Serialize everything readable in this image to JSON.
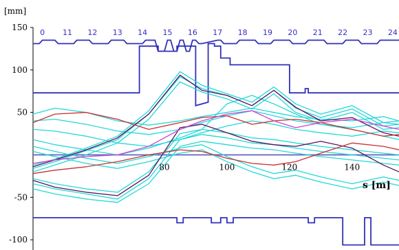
{
  "chart_data": {
    "type": "line",
    "title": "",
    "ylabel": "[mm]",
    "xlabel": "s [m]",
    "xlim": [
      38,
      155
    ],
    "ylim": [
      -112,
      150
    ],
    "x_ticks": [
      "80",
      "100",
      "120",
      "140"
    ],
    "y_ticks": [
      "150",
      "100",
      "50",
      "-50",
      "-100"
    ],
    "cell_labels": [
      "0",
      "11",
      "12",
      "13",
      "14",
      "15",
      "16",
      "17",
      "18",
      "19",
      "20",
      "21",
      "22",
      "23",
      "24"
    ],
    "colors": {
      "aperture": "#3030b8",
      "center_line": "#6060c0",
      "trajectories_cyan": "#22d8d8",
      "trajectories_dark": "#5a1060",
      "trajectories_red": "#c83030",
      "trajectories_magenta": "#d040d0"
    },
    "series": [
      {
        "role": "top-cell-bar",
        "color": "#3030b8",
        "x": [
          38,
          40,
          41,
          45,
          46,
          51,
          52,
          56,
          57,
          62,
          63,
          67,
          68,
          73,
          74,
          77,
          78,
          80,
          81,
          82,
          83,
          84,
          85,
          86,
          87,
          88,
          89,
          90,
          91,
          92,
          97,
          98,
          99,
          103,
          104,
          109,
          110,
          114,
          115,
          120,
          121,
          125,
          126,
          131,
          132,
          137,
          138,
          142,
          143,
          148,
          149,
          155
        ],
        "y": [
          131,
          131,
          135,
          135,
          131,
          131,
          135,
          135,
          131,
          131,
          135,
          135,
          131,
          131,
          135,
          135,
          122,
          122,
          135,
          135,
          122,
          122,
          135,
          135,
          122,
          122,
          135,
          135,
          131,
          131,
          135,
          135,
          131,
          131,
          135,
          135,
          131,
          131,
          135,
          135,
          131,
          131,
          135,
          135,
          131,
          131,
          135,
          135,
          131,
          131,
          135,
          135
        ]
      },
      {
        "role": "upper-aperture",
        "color": "#3030b8",
        "x": [
          38,
          72,
          72,
          78,
          78,
          84,
          84,
          90,
          90,
          94,
          94,
          96,
          96,
          98,
          98,
          101,
          101,
          103,
          103,
          120,
          120,
          125,
          125,
          126,
          126,
          155
        ],
        "y": [
          73,
          73,
          128,
          128,
          122,
          122,
          128,
          128,
          58,
          62,
          131,
          131,
          128,
          128,
          114,
          114,
          106,
          106,
          106,
          106,
          73,
          73,
          78,
          78,
          73,
          73
        ]
      },
      {
        "role": "lower-aperture",
        "color": "#3030b8",
        "x": [
          38,
          84,
          84,
          86,
          86,
          95,
          95,
          98,
          98,
          100,
          100,
          102,
          102,
          126,
          126,
          128,
          128,
          137,
          137,
          144,
          144,
          146,
          146,
          155
        ],
        "y": [
          -74,
          -74,
          -80,
          -80,
          -74,
          -74,
          -80,
          -80,
          -74,
          -74,
          -80,
          -80,
          -74,
          -74,
          -80,
          -80,
          -74,
          -74,
          -106,
          -106,
          -74,
          -74,
          -106,
          -106
        ]
      },
      {
        "role": "center-line",
        "color": "#6060c0",
        "x": [
          38,
          155
        ],
        "y": [
          0,
          0
        ]
      },
      {
        "color": "#22d8d8",
        "x": [
          38,
          45,
          55,
          65,
          75,
          85,
          92,
          100,
          108,
          115,
          122,
          130,
          140,
          150,
          155
        ],
        "y": [
          -12,
          -5,
          8,
          22,
          52,
          98,
          82,
          72,
          62,
          80,
          60,
          48,
          58,
          38,
          40
        ]
      },
      {
        "color": "#22d8d8",
        "x": [
          38,
          45,
          55,
          65,
          75,
          85,
          92,
          100,
          108,
          115,
          122,
          130,
          140,
          150,
          155
        ],
        "y": [
          -16,
          -8,
          5,
          18,
          48,
          92,
          78,
          70,
          58,
          76,
          55,
          44,
          54,
          34,
          36
        ]
      },
      {
        "color": "#22d8d8",
        "x": [
          38,
          45,
          55,
          65,
          75,
          85,
          92,
          100,
          108,
          115,
          122,
          130,
          140,
          150,
          155
        ],
        "y": [
          -20,
          -12,
          0,
          14,
          42,
          86,
          74,
          66,
          54,
          72,
          50,
          40,
          50,
          30,
          32
        ]
      },
      {
        "color": "#22d8d8",
        "x": [
          38,
          45,
          55,
          65,
          75,
          85,
          92,
          100,
          108,
          115,
          122,
          130,
          140,
          150,
          155
        ],
        "y": [
          48,
          55,
          50,
          40,
          35,
          40,
          45,
          50,
          55,
          50,
          45,
          42,
          40,
          45,
          40
        ]
      },
      {
        "color": "#22d8d8",
        "x": [
          38,
          45,
          55,
          65,
          75,
          85,
          92,
          100,
          108,
          115,
          122,
          130,
          140,
          150,
          155
        ],
        "y": [
          40,
          42,
          36,
          28,
          24,
          30,
          38,
          46,
          52,
          46,
          40,
          36,
          32,
          38,
          36
        ]
      },
      {
        "color": "#22d8d8",
        "x": [
          38,
          45,
          55,
          65,
          75,
          85,
          92,
          100,
          108,
          115,
          122,
          130,
          140,
          150,
          155
        ],
        "y": [
          30,
          28,
          22,
          14,
          10,
          18,
          26,
          34,
          40,
          36,
          30,
          26,
          22,
          28,
          26
        ]
      },
      {
        "color": "#22d8d8",
        "x": [
          38,
          45,
          55,
          65,
          75,
          85,
          92,
          100,
          108,
          115,
          122,
          130,
          140,
          150,
          155
        ],
        "y": [
          -28,
          -34,
          -40,
          -44,
          -20,
          25,
          30,
          26,
          20,
          18,
          14,
          10,
          6,
          2,
          0
        ]
      },
      {
        "color": "#22d8d8",
        "x": [
          38,
          45,
          55,
          65,
          75,
          85,
          92,
          100,
          108,
          115,
          122,
          130,
          140,
          150,
          155
        ],
        "y": [
          -34,
          -40,
          -46,
          -52,
          -28,
          18,
          24,
          20,
          14,
          12,
          8,
          4,
          0,
          -4,
          -6
        ]
      },
      {
        "color": "#22d8d8",
        "x": [
          38,
          45,
          55,
          65,
          75,
          85,
          92,
          100,
          108,
          115,
          122,
          130,
          140,
          150,
          155
        ],
        "y": [
          -40,
          -46,
          -52,
          -56,
          -34,
          10,
          16,
          12,
          8,
          6,
          2,
          -2,
          -6,
          -10,
          -12
        ]
      },
      {
        "color": "#22d8d8",
        "x": [
          38,
          45,
          55,
          65,
          75,
          85,
          92,
          100,
          108,
          115,
          122,
          130,
          140,
          150,
          155
        ],
        "y": [
          10,
          4,
          -4,
          -10,
          -2,
          8,
          12,
          -2,
          -14,
          -22,
          -18,
          -26,
          -34,
          -26,
          -30
        ]
      },
      {
        "color": "#22d8d8",
        "x": [
          38,
          45,
          55,
          65,
          75,
          85,
          92,
          100,
          108,
          115,
          122,
          130,
          140,
          150,
          155
        ],
        "y": [
          4,
          -2,
          -10,
          -16,
          -8,
          2,
          6,
          -8,
          -20,
          -28,
          -24,
          -32,
          -40,
          -32,
          -36
        ]
      },
      {
        "color": "#22d8d8",
        "x": [
          38,
          45,
          55,
          65,
          75,
          85,
          92,
          100,
          108,
          115,
          122,
          130,
          140,
          150,
          155
        ],
        "y": [
          18,
          12,
          6,
          0,
          8,
          20,
          30,
          60,
          70,
          60,
          48,
          36,
          30,
          22,
          18
        ]
      },
      {
        "color": "#5a1060",
        "x": [
          38,
          45,
          55,
          65,
          75,
          85,
          92,
          100,
          108,
          115,
          122,
          130,
          140,
          150,
          155
        ],
        "y": [
          -14,
          -6,
          6,
          20,
          48,
          94,
          76,
          70,
          58,
          76,
          56,
          40,
          44,
          26,
          22
        ]
      },
      {
        "color": "#5a1060",
        "x": [
          38,
          45,
          55,
          65,
          75,
          85,
          92,
          100,
          108,
          115,
          122,
          130,
          140,
          150,
          155
        ],
        "y": [
          -30,
          -38,
          -44,
          -48,
          -24,
          32,
          36,
          26,
          16,
          12,
          10,
          16,
          8,
          -12,
          -20
        ]
      },
      {
        "color": "#c83030",
        "x": [
          38,
          45,
          55,
          65,
          75,
          85,
          92,
          100,
          108,
          115,
          122,
          130,
          140,
          150,
          155
        ],
        "y": [
          38,
          48,
          50,
          42,
          30,
          38,
          44,
          46,
          36,
          40,
          42,
          38,
          30,
          22,
          24
        ]
      },
      {
        "color": "#c83030",
        "x": [
          38,
          45,
          55,
          65,
          75,
          85,
          92,
          100,
          108,
          115,
          122,
          130,
          140,
          150,
          155
        ],
        "y": [
          -22,
          -18,
          -14,
          -8,
          0,
          6,
          4,
          -4,
          -10,
          -12,
          -8,
          2,
          14,
          10,
          6
        ]
      },
      {
        "color": "#d040d0",
        "x": [
          38,
          45,
          55,
          65,
          75,
          85,
          92,
          100,
          108,
          115,
          122,
          130,
          140,
          150,
          155
        ],
        "y": [
          -10,
          -6,
          -2,
          0,
          10,
          30,
          40,
          48,
          52,
          40,
          32,
          38,
          42,
          34,
          30
        ]
      }
    ]
  }
}
